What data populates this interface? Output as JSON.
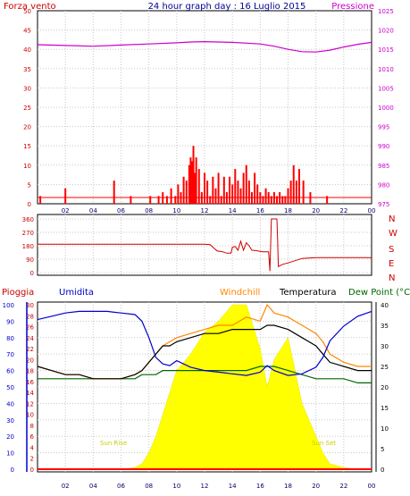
{
  "chart_data": [
    {
      "type": "bar+line",
      "title": "24 hour graph day : 16 Luglio 2015",
      "left_label": "Forza vento",
      "right_label": "Pressione",
      "left_ticks": [
        0,
        5,
        10,
        15,
        20,
        25,
        30,
        35,
        40,
        45,
        50
      ],
      "right_ticks": [
        975,
        980,
        985,
        990,
        995,
        1000,
        1005,
        1010,
        1015,
        1020,
        1025
      ],
      "ylim_left": [
        0,
        50
      ],
      "ylim_right": [
        975,
        1025
      ],
      "x_ticks": [
        "02",
        "04",
        "06",
        "08",
        "10",
        "12",
        "14",
        "16",
        "18",
        "20",
        "22",
        "00"
      ],
      "grid": true,
      "colors": {
        "wind": "#ff0000",
        "pressure": "#cc00cc",
        "gust": "#0000ff"
      },
      "pressure_x": [
        0,
        2,
        4,
        6,
        8,
        10,
        11,
        12,
        14,
        16,
        17,
        18,
        19,
        20,
        21,
        22,
        23,
        24
      ],
      "pressure_values": [
        1016.2,
        1016.0,
        1015.8,
        1016.1,
        1016.4,
        1016.7,
        1016.9,
        1017.0,
        1016.8,
        1016.4,
        1015.8,
        1015.0,
        1014.4,
        1014.3,
        1014.8,
        1015.6,
        1016.3,
        1016.8
      ],
      "wind_x": [
        0.2,
        2.0,
        5.5,
        6.7,
        8.1,
        8.7,
        9.0,
        9.3,
        9.6,
        9.9,
        10.1,
        10.3,
        10.5,
        10.7,
        10.9,
        11.0,
        11.1,
        11.2,
        11.3,
        11.4,
        11.6,
        11.8,
        12.0,
        12.2,
        12.4,
        12.6,
        12.8,
        13.0,
        13.2,
        13.4,
        13.6,
        13.8,
        14.0,
        14.2,
        14.4,
        14.6,
        14.8,
        15.0,
        15.2,
        15.4,
        15.6,
        15.8,
        16.0,
        16.2,
        16.4,
        16.6,
        16.8,
        17.0,
        17.2,
        17.4,
        17.6,
        17.8,
        18.0,
        18.2,
        18.4,
        18.6,
        18.8,
        19.1,
        19.6,
        20.8
      ],
      "wind_values": [
        2,
        4,
        6,
        2,
        2,
        2,
        3,
        2,
        4,
        2,
        5,
        3,
        7,
        6,
        10,
        12,
        11,
        15,
        8,
        12,
        9,
        3,
        8,
        6,
        2,
        7,
        4,
        8,
        2,
        7,
        3,
        7,
        5,
        9,
        6,
        4,
        8,
        10,
        6,
        3,
        8,
        5,
        3,
        2,
        4,
        3,
        2,
        3,
        2,
        3,
        2,
        2,
        4,
        6,
        10,
        6,
        9,
        6,
        3,
        2
      ]
    },
    {
      "type": "line",
      "title": "",
      "right_letters": [
        "N",
        "W",
        "S",
        "E",
        "N"
      ],
      "y_ticks": [
        0,
        90,
        180,
        270,
        360
      ],
      "ylim": [
        0,
        360
      ],
      "grid": true,
      "color": "#cc0000",
      "x": [
        0,
        8,
        10,
        12,
        12.4,
        12.9,
        13.3,
        13.6,
        13.9,
        14.0,
        14.2,
        14.4,
        14.6,
        14.8,
        15.0,
        15.2,
        15.4,
        15.6,
        16.2,
        16.6,
        16.7,
        16.8,
        17.2,
        17.25,
        17.3,
        17.6,
        18.0,
        18.5,
        19.0,
        20.0,
        22.0,
        24.0
      ],
      "values": [
        190,
        190,
        190,
        190,
        188,
        145,
        140,
        130,
        130,
        170,
        175,
        150,
        210,
        150,
        200,
        180,
        150,
        148,
        140,
        140,
        10,
        360,
        360,
        220,
        40,
        55,
        65,
        80,
        95,
        100,
        100,
        100
      ]
    },
    {
      "type": "line+area",
      "title": "",
      "top_labels": [
        "Pioggia",
        "Umidita",
        "Windchill",
        "Temperatura",
        "Dew Point (°C"
      ],
      "ylim_humidity": [
        0,
        100
      ],
      "ylim_rain": [
        0,
        30
      ],
      "ylim_temp": [
        0,
        40
      ],
      "humidity_ticks": [
        0,
        10,
        20,
        30,
        40,
        50,
        60,
        70,
        80,
        90,
        100
      ],
      "rain_ticks": [
        0,
        2,
        4,
        6,
        8,
        10,
        12,
        14,
        16,
        18,
        20,
        22,
        24,
        26,
        28,
        30
      ],
      "temp_ticks": [
        0,
        5,
        10,
        15,
        20,
        25,
        30,
        35,
        40
      ],
      "x_ticks": [
        "02",
        "04",
        "06",
        "08",
        "10",
        "12",
        "14",
        "16",
        "18",
        "20",
        "22",
        "00"
      ],
      "annotations": [
        "Sun Rise",
        "Sun Set"
      ],
      "grid": true,
      "colors": {
        "rain": "#ff0000",
        "humidity": "#0000cc",
        "windchill": "#ff8800",
        "temperature": "#000000",
        "dewpoint": "#006600",
        "solar": "#ffff00"
      },
      "x": [
        0,
        1,
        2,
        3,
        4,
        5,
        6,
        7,
        7.5,
        8,
        8.5,
        9,
        9.5,
        10,
        11,
        12,
        13,
        14,
        15,
        16,
        16.5,
        17,
        18,
        19,
        20,
        20.5,
        21,
        22,
        23,
        24
      ],
      "humidity": [
        91,
        93,
        95,
        96,
        96,
        96,
        95,
        94,
        90,
        80,
        68,
        64,
        63,
        66,
        62,
        60,
        59,
        58,
        57,
        59,
        63,
        60,
        57,
        58,
        62,
        68,
        78,
        87,
        93,
        96
      ],
      "windchill": [
        25,
        24,
        23,
        23,
        22,
        22,
        22,
        23,
        24,
        26,
        28,
        30,
        31,
        32,
        33,
        34,
        35,
        35,
        37,
        36,
        40,
        38,
        37,
        35,
        33,
        31,
        28,
        26,
        25,
        25
      ],
      "temperature": [
        25,
        24,
        23,
        23,
        22,
        22,
        22,
        23,
        24,
        26,
        28,
        30,
        30,
        31,
        32,
        33,
        33,
        34,
        34,
        34,
        35,
        35,
        34,
        32,
        30,
        28,
        26,
        25,
        24,
        24
      ],
      "dewpoint": [
        22,
        22,
        22,
        22,
        22,
        22,
        22,
        22,
        23,
        23,
        23,
        24,
        24,
        24,
        24,
        24,
        24,
        24,
        24,
        25,
        25,
        25,
        24,
        23,
        22,
        22,
        22,
        22,
        21,
        21
      ],
      "solar": [
        0,
        0,
        0,
        0,
        0,
        0,
        0,
        0.3,
        1,
        3,
        6,
        10,
        14,
        18,
        21,
        25,
        27,
        30,
        30,
        22,
        15,
        20,
        24,
        12,
        6,
        3,
        1,
        0.3,
        0,
        0
      ],
      "rain": [
        0,
        0,
        0,
        0,
        0,
        0,
        0,
        0,
        0,
        0,
        0,
        0,
        0,
        0,
        0,
        0,
        0,
        0,
        0,
        0,
        0,
        0,
        0,
        0,
        0,
        0,
        0,
        0,
        0,
        0
      ]
    }
  ]
}
